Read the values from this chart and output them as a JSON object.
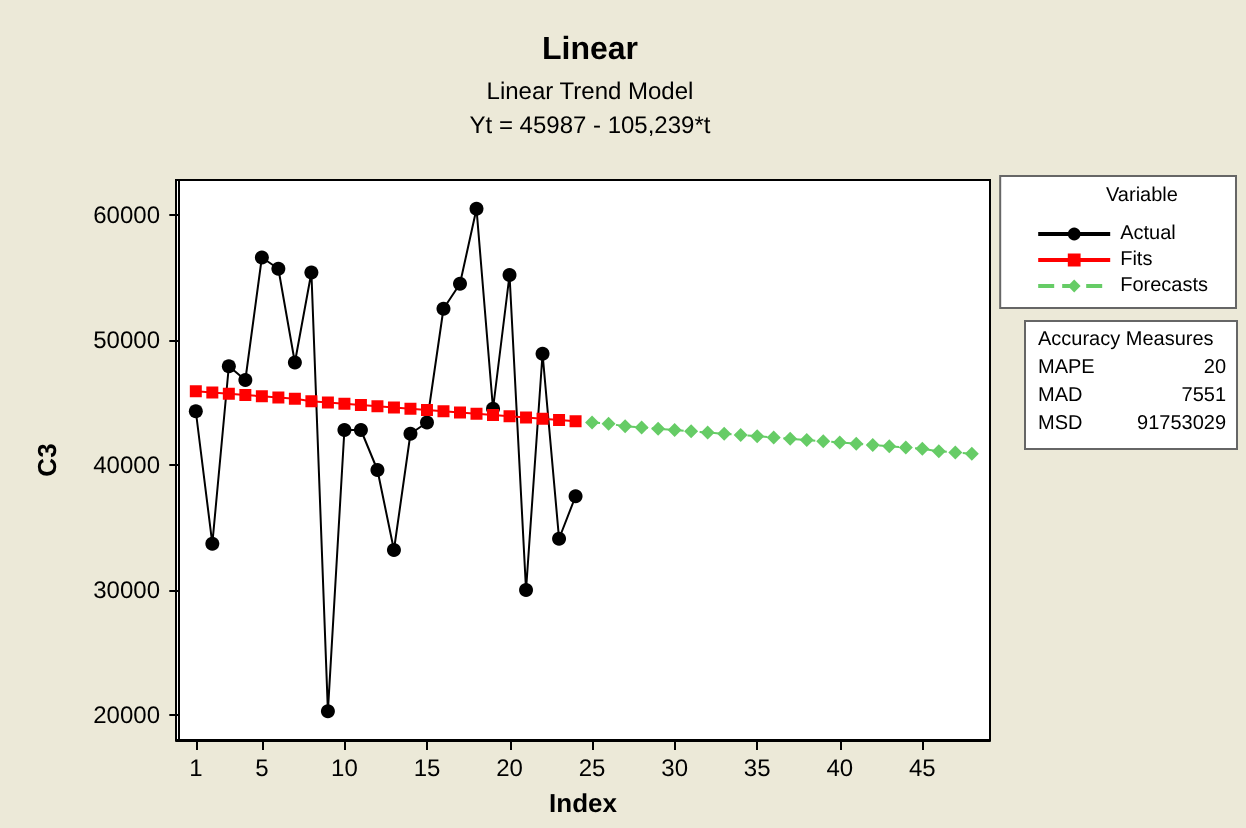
{
  "chart_data": {
    "type": "line",
    "title": "Linear",
    "subtitle": "Linear Trend Model\nYt = 45987 - 105,239*t",
    "xlabel": "Index",
    "ylabel": "C3",
    "legend_title": "Variable",
    "legend": "right",
    "grid": false,
    "xlim": [
      -0.2,
      49.1
    ],
    "xticks": [
      1,
      5,
      10,
      15,
      20,
      25,
      30,
      35,
      40,
      45
    ],
    "ylim": [
      18000,
      62800
    ],
    "yticks": [
      20000,
      30000,
      40000,
      50000,
      60000
    ],
    "series": [
      {
        "name": "Actual",
        "color": "#000000",
        "marker": "circle",
        "line_style": "solid",
        "x": [
          1,
          2,
          3,
          4,
          5,
          6,
          7,
          8,
          9,
          10,
          11,
          12,
          13,
          14,
          15,
          16,
          17,
          18,
          19,
          20,
          21,
          22,
          23,
          24
        ],
        "values": [
          44300,
          33700,
          47900,
          46800,
          56600,
          55700,
          48200,
          55400,
          20300,
          42800,
          42800,
          39600,
          33200,
          42500,
          43400,
          52500,
          54500,
          60500,
          44500,
          55200,
          30000,
          48900,
          34100,
          37500
        ]
      },
      {
        "name": "Fits",
        "color": "#ff0000",
        "marker": "square",
        "line_style": "solid",
        "x": [
          1,
          2,
          3,
          4,
          5,
          6,
          7,
          8,
          9,
          10,
          11,
          12,
          13,
          14,
          15,
          16,
          17,
          18,
          19,
          20,
          21,
          22,
          23,
          24
        ],
        "values": [
          45900,
          45800,
          45700,
          45600,
          45500,
          45400,
          45300,
          45100,
          45000,
          44900,
          44800,
          44700,
          44600,
          44500,
          44400,
          44300,
          44200,
          44100,
          44000,
          43900,
          43800,
          43700,
          43600,
          43500
        ]
      },
      {
        "name": "Forecasts",
        "color": "#66cc66",
        "marker": "diamond",
        "line_style": "dashed",
        "x": [
          25,
          26,
          27,
          28,
          29,
          30,
          31,
          32,
          33,
          34,
          35,
          36,
          37,
          38,
          39,
          40,
          41,
          42,
          43,
          44,
          45,
          46,
          47,
          48
        ],
        "values": [
          43400,
          43300,
          43100,
          43000,
          42900,
          42800,
          42700,
          42600,
          42500,
          42400,
          42300,
          42200,
          42100,
          42000,
          41900,
          41800,
          41700,
          41600,
          41500,
          41400,
          41300,
          41100,
          41000,
          40900
        ]
      }
    ],
    "annotations": [
      "Accuracy Measures",
      "MAPE 20",
      "MAD 7551",
      "MSD 91753029"
    ]
  }
}
